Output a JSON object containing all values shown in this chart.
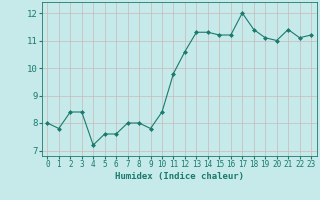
{
  "x": [
    0,
    1,
    2,
    3,
    4,
    5,
    6,
    7,
    8,
    9,
    10,
    11,
    12,
    13,
    14,
    15,
    16,
    17,
    18,
    19,
    20,
    21,
    22,
    23
  ],
  "y": [
    8.0,
    7.8,
    8.4,
    8.4,
    7.2,
    7.6,
    7.6,
    8.0,
    8.0,
    7.8,
    8.4,
    9.8,
    10.6,
    11.3,
    11.3,
    11.2,
    11.2,
    12.0,
    11.4,
    11.1,
    11.0,
    11.4,
    11.1,
    11.2
  ],
  "xlabel": "Humidex (Indice chaleur)",
  "xlim": [
    -0.5,
    23.5
  ],
  "ylim": [
    6.8,
    12.4
  ],
  "yticks": [
    7,
    8,
    9,
    10,
    11,
    12
  ],
  "xticks": [
    0,
    1,
    2,
    3,
    4,
    5,
    6,
    7,
    8,
    9,
    10,
    11,
    12,
    13,
    14,
    15,
    16,
    17,
    18,
    19,
    20,
    21,
    22,
    23
  ],
  "line_color": "#1a7a6e",
  "marker_color": "#1a7a6e",
  "bg_color": "#c6eaea",
  "grid_color": "#c8b8b8",
  "axis_color": "#1a7a6e",
  "tick_fontsize": 5.5,
  "xlabel_fontsize": 6.5,
  "ytick_fontsize": 6.5
}
